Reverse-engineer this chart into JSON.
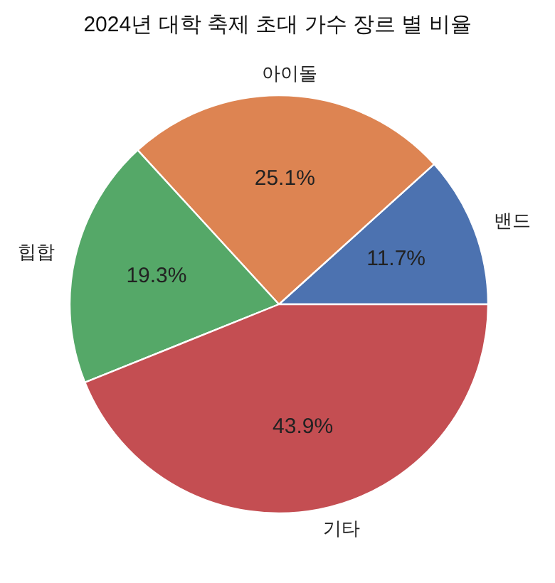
{
  "chart_data": {
    "type": "pie",
    "title": "2024년 대학 축제 초대 가수 장르 별 비율",
    "categories": [
      "밴드",
      "아이돌",
      "힙합",
      "기타"
    ],
    "values": [
      11.7,
      25.1,
      19.3,
      43.9
    ],
    "colors": [
      "#4c72b0",
      "#dd8452",
      "#55a868",
      "#c44e52"
    ],
    "value_labels": [
      "11.7%",
      "25.1%",
      "19.3%",
      "43.9%"
    ]
  }
}
